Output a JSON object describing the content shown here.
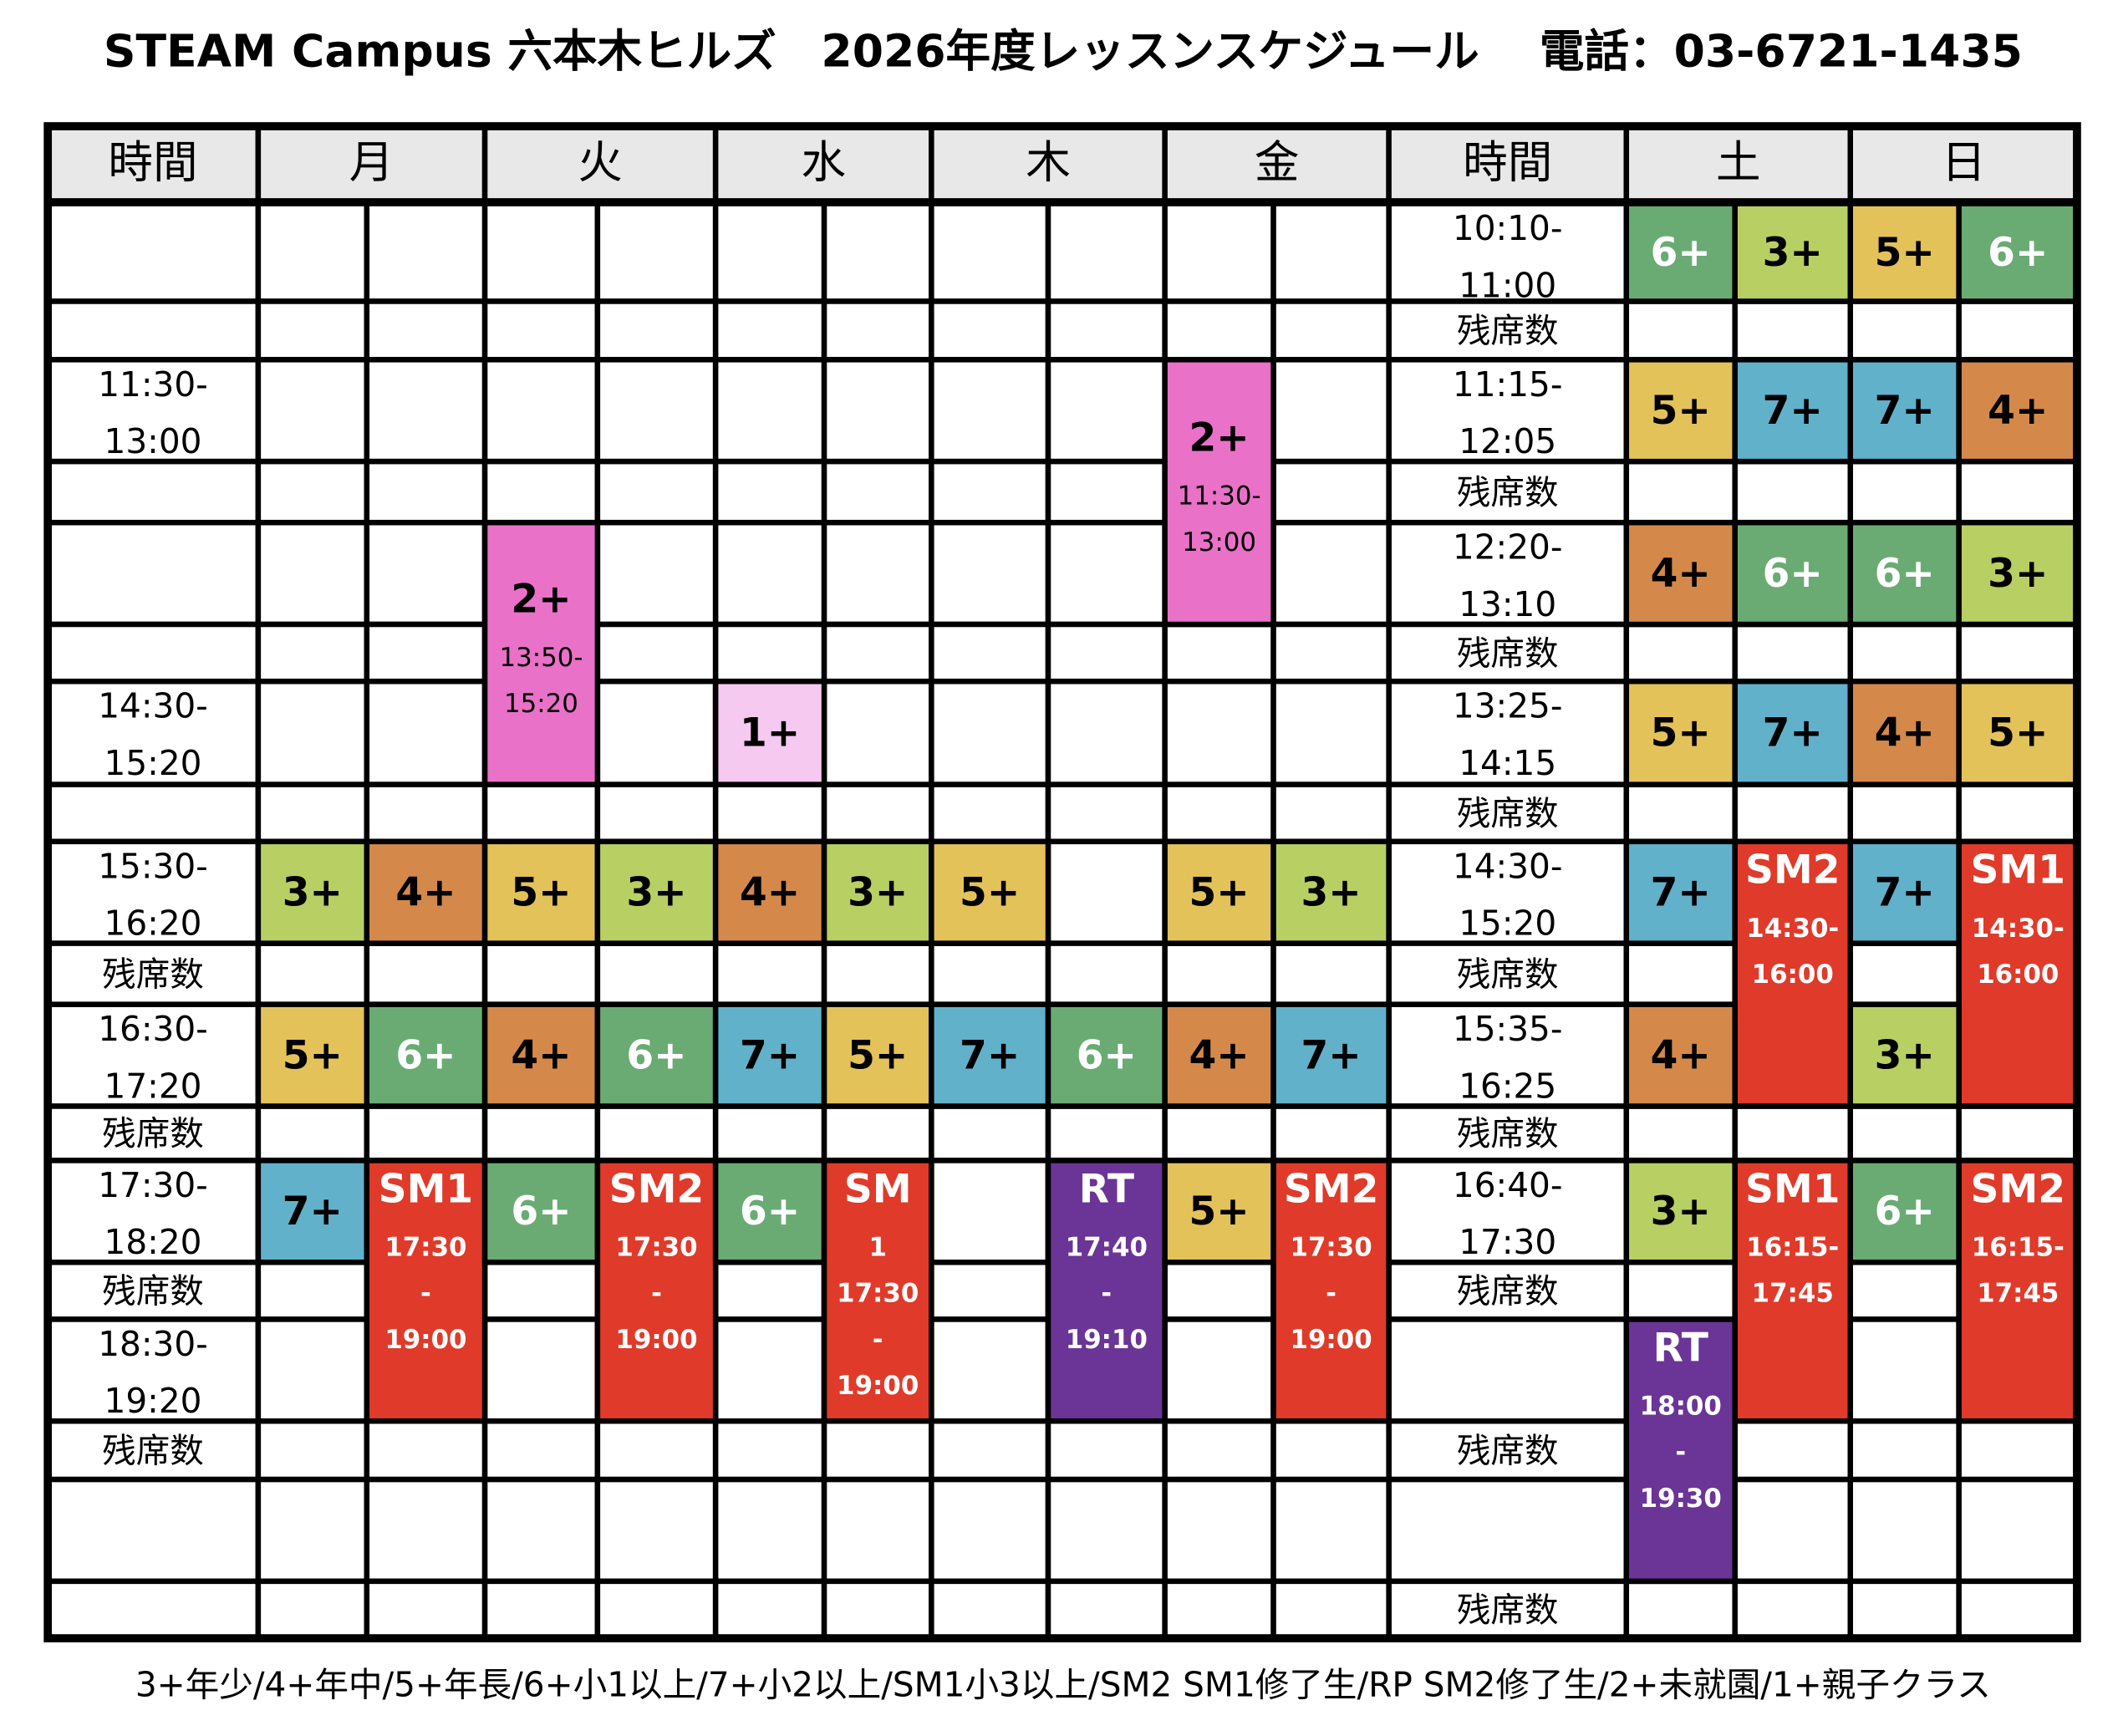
{
  "title": "STEAM Campus 六本木ヒルズ　2026年度レッスンスケジュール　 電話：03-6721-1435",
  "headers": [
    "時間",
    "月",
    "火",
    "水",
    "木",
    "金",
    "時間",
    "土",
    "日"
  ],
  "left_times": [
    null,
    null,
    [
      "11:30-",
      "13:00"
    ],
    null,
    null,
    null,
    [
      "14:30-",
      "15:20"
    ],
    null,
    [
      "15:30-",
      "16:20"
    ],
    [
      "残席数"
    ],
    [
      "16:30-",
      "17:20"
    ],
    [
      "残席数"
    ],
    [
      "17:30-",
      "18:20"
    ],
    [
      "残席数"
    ],
    [
      "18:30-",
      "19:20"
    ],
    [
      "残席数"
    ],
    null,
    null
  ],
  "right_times": [
    [
      "10:10-",
      "11:00"
    ],
    [
      "残席数"
    ],
    [
      "11:15-",
      "12:05"
    ],
    [
      "残席数"
    ],
    [
      "12:20-",
      "13:10"
    ],
    [
      "残席数"
    ],
    [
      "13:25-",
      "14:15"
    ],
    [
      "残席数"
    ],
    [
      "14:30-",
      "15:20"
    ],
    [
      "残席数"
    ],
    [
      "15:35-",
      "16:25"
    ],
    [
      "残席数"
    ],
    [
      "16:40-",
      "17:30"
    ],
    [
      "残席数"
    ],
    null,
    [
      "残席数"
    ],
    null,
    [
      "残席数"
    ]
  ],
  "blocks": [
    {
      "lines": [
        "2+",
        "11:30-",
        "13:00"
      ],
      "color": "#e971c8"
    },
    {
      "lines": [
        "2+",
        "13:50-",
        "15:20"
      ],
      "color": "#e971c8"
    },
    {
      "lines": [
        "1+"
      ],
      "color": "#f5c9f0"
    },
    {
      "lines": [
        "3+"
      ],
      "color": "#b8cf63"
    },
    {
      "lines": [
        "4+"
      ],
      "color": "#d4894a"
    },
    {
      "lines": [
        "5+"
      ],
      "color": "#e3c25a"
    },
    {
      "lines": [
        "3+"
      ],
      "color": "#b8cf63"
    },
    {
      "lines": [
        "4+"
      ],
      "color": "#d4894a"
    },
    {
      "lines": [
        "3+"
      ],
      "color": "#b8cf63"
    },
    {
      "lines": [
        "5+"
      ],
      "color": "#e3c25a"
    },
    {
      "lines": [
        "5+"
      ],
      "color": "#e3c25a"
    },
    {
      "lines": [
        "3+"
      ],
      "color": "#b8cf63"
    },
    {
      "lines": [
        "5+"
      ],
      "color": "#e3c25a"
    },
    {
      "lines": [
        "6+"
      ],
      "color": "#6aab74"
    },
    {
      "lines": [
        "4+"
      ],
      "color": "#d4894a"
    },
    {
      "lines": [
        "6+"
      ],
      "color": "#6aab74"
    },
    {
      "lines": [
        "7+"
      ],
      "color": "#62b1cb"
    },
    {
      "lines": [
        "5+"
      ],
      "color": "#e3c25a"
    },
    {
      "lines": [
        "7+"
      ],
      "color": "#62b1cb"
    },
    {
      "lines": [
        "6+"
      ],
      "color": "#6aab74"
    },
    {
      "lines": [
        "4+"
      ],
      "color": "#d4894a"
    },
    {
      "lines": [
        "7+"
      ],
      "color": "#62b1cb"
    },
    {
      "lines": [
        "7+"
      ],
      "color": "#62b1cb"
    },
    {
      "lines": [
        "SM1",
        "17:30",
        "-",
        "19:00"
      ],
      "color": "#e03a2a"
    },
    {
      "lines": [
        "6+"
      ],
      "color": "#6aab74"
    },
    {
      "lines": [
        "SM2",
        "17:30",
        "-",
        "19:00"
      ],
      "color": "#e03a2a"
    },
    {
      "lines": [
        "6+"
      ],
      "color": "#6aab74"
    },
    {
      "lines": [
        "SM",
        "1",
        "17:30",
        "-",
        "19:00"
      ],
      "color": "#e03a2a"
    },
    {
      "lines": [
        "RT",
        "17:40",
        "-",
        "19:10"
      ],
      "color": "#6a3596"
    },
    {
      "lines": [
        "5+"
      ],
      "color": "#e3c25a"
    },
    {
      "lines": [
        "SM2",
        "17:30",
        "-",
        "19:00"
      ],
      "color": "#e03a2a"
    },
    {
      "lines": [
        "6+"
      ],
      "color": "#6aab74"
    },
    {
      "lines": [
        "3+"
      ],
      "color": "#b8cf63"
    },
    {
      "lines": [
        "5+"
      ],
      "color": "#e3c25a"
    },
    {
      "lines": [
        "6+"
      ],
      "color": "#6aab74"
    },
    {
      "lines": [
        "5+"
      ],
      "color": "#e3c25a"
    },
    {
      "lines": [
        "7+"
      ],
      "color": "#62b1cb"
    },
    {
      "lines": [
        "7+"
      ],
      "color": "#62b1cb"
    },
    {
      "lines": [
        "4+"
      ],
      "color": "#d4894a"
    },
    {
      "lines": [
        "4+"
      ],
      "color": "#d4894a"
    },
    {
      "lines": [
        "6+"
      ],
      "color": "#6aab74"
    },
    {
      "lines": [
        "6+"
      ],
      "color": "#6aab74"
    },
    {
      "lines": [
        "3+"
      ],
      "color": "#b8cf63"
    },
    {
      "lines": [
        "5+"
      ],
      "color": "#e3c25a"
    },
    {
      "lines": [
        "7+"
      ],
      "color": "#62b1cb"
    },
    {
      "lines": [
        "4+"
      ],
      "color": "#d4894a"
    },
    {
      "lines": [
        "5+"
      ],
      "color": "#e3c25a"
    },
    {
      "lines": [
        "7+"
      ],
      "color": "#62b1cb"
    },
    {
      "lines": [
        "SM2",
        "14:30-",
        "16:00"
      ],
      "color": "#e03a2a"
    },
    {
      "lines": [
        "7+"
      ],
      "color": "#62b1cb"
    },
    {
      "lines": [
        "SM1",
        "14:30-",
        "16:00"
      ],
      "color": "#e03a2a"
    },
    {
      "lines": [
        "4+"
      ],
      "color": "#d4894a"
    },
    {
      "lines": [
        "3+"
      ],
      "color": "#b8cf63"
    },
    {
      "lines": [
        "3+"
      ],
      "color": "#b8cf63"
    },
    {
      "lines": [
        "SM1",
        "16:15-",
        "17:45"
      ],
      "color": "#e03a2a"
    },
    {
      "lines": [
        "6+"
      ],
      "color": "#6aab74"
    },
    {
      "lines": [
        "SM2",
        "16:15-",
        "17:45"
      ],
      "color": "#e03a2a"
    },
    {
      "lines": [
        "RT",
        "18:00",
        "-",
        "19:30"
      ],
      "color": "#6a3596"
    }
  ],
  "legend": "3+年少/4+年中/5+年長/6+小1以上/7+小2以上/SM1小3以上/SM2 SM1修了生/RP SM2修了生/2+未就園/1+親子クラス"
}
